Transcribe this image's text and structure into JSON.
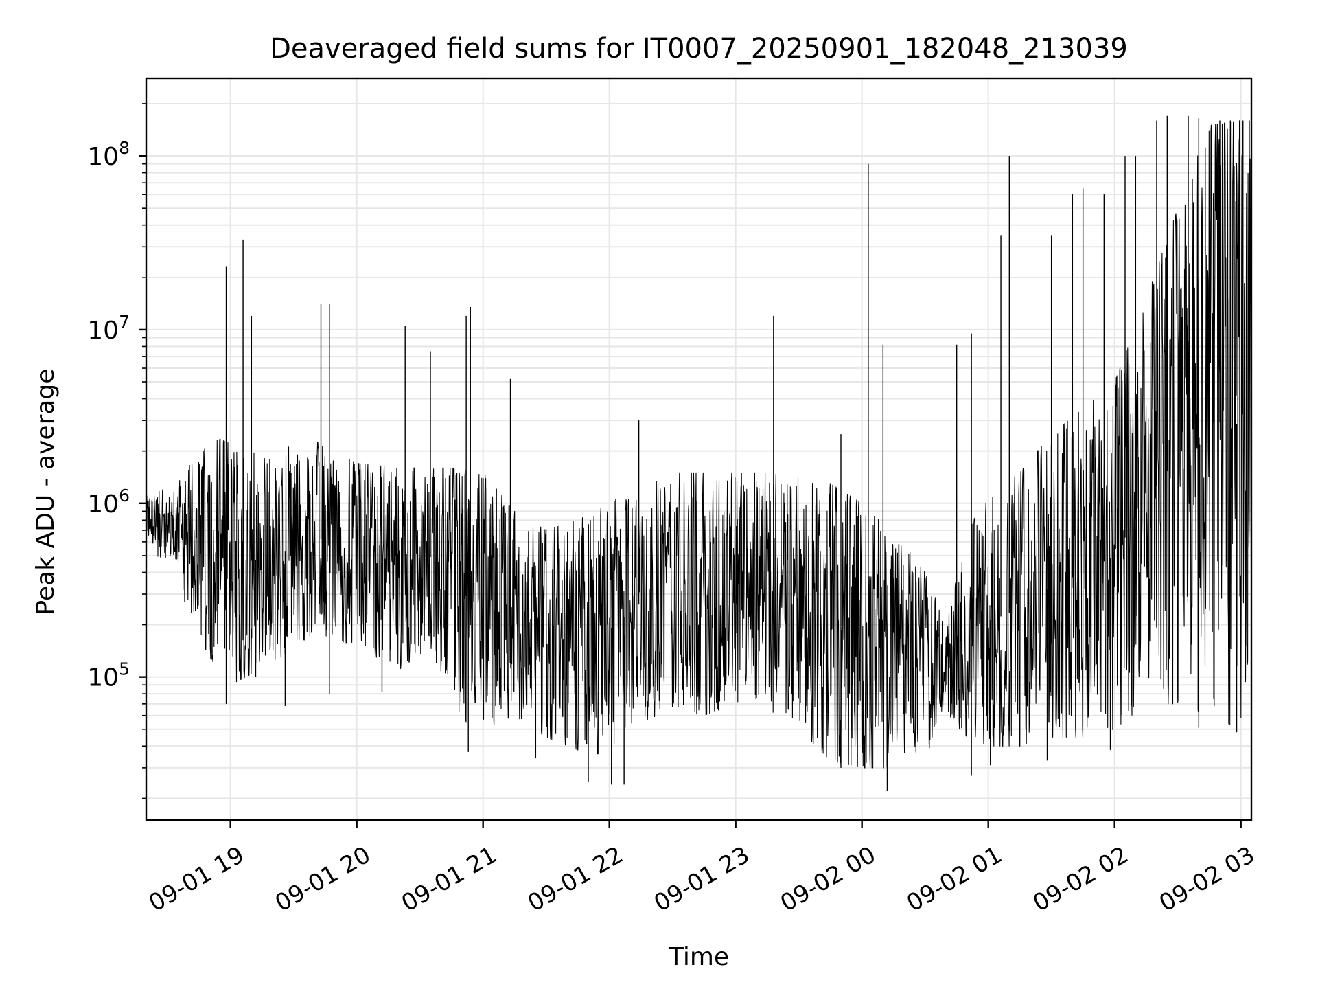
{
  "chart_data": {
    "type": "line",
    "title": "Deaveraged field sums for IT0007_20250901_182048_213039",
    "xlabel": "Time",
    "ylabel": "Peak ADU - average",
    "y_scale": "log",
    "grid": true,
    "grid_color": "#e6e6e6",
    "line_color": "#000000",
    "x_range": [
      "2025-09-01 18:20",
      "2025-09-02 03:05"
    ],
    "ylim": [
      15000,
      280000000
    ],
    "x_ticks": [
      {
        "time": "2025-09-01 19:00",
        "label": "09-01 19"
      },
      {
        "time": "2025-09-01 20:00",
        "label": "09-01 20"
      },
      {
        "time": "2025-09-01 21:00",
        "label": "09-01 21"
      },
      {
        "time": "2025-09-01 22:00",
        "label": "09-01 22"
      },
      {
        "time": "2025-09-01 23:00",
        "label": "09-01 23"
      },
      {
        "time": "2025-09-02 00:00",
        "label": "09-02 00"
      },
      {
        "time": "2025-09-02 01:00",
        "label": "09-02 01"
      },
      {
        "time": "2025-09-02 02:00",
        "label": "09-02 02"
      },
      {
        "time": "2025-09-02 03:00",
        "label": "09-02 03"
      }
    ],
    "y_ticks": [
      {
        "value": 100000,
        "mantissa": "10",
        "exponent": "5"
      },
      {
        "value": 1000000,
        "mantissa": "10",
        "exponent": "6"
      },
      {
        "value": 10000000,
        "mantissa": "10",
        "exponent": "7"
      },
      {
        "value": 100000000,
        "mantissa": "10",
        "exponent": "8"
      }
    ],
    "envelope": [
      {
        "time": "2025-09-01 18:20",
        "low": 650000,
        "high": 1100000
      },
      {
        "time": "2025-09-01 18:35",
        "low": 300000,
        "high": 1300000
      },
      {
        "time": "2025-09-01 18:50",
        "low": 130000,
        "high": 2500000
      },
      {
        "time": "2025-09-01 19:00",
        "low": 90000,
        "high": 2200000
      },
      {
        "time": "2025-09-01 19:20",
        "low": 120000,
        "high": 2000000
      },
      {
        "time": "2025-09-01 19:40",
        "low": 180000,
        "high": 2300000
      },
      {
        "time": "2025-09-01 20:00",
        "low": 150000,
        "high": 1700000
      },
      {
        "time": "2025-09-01 20:20",
        "low": 110000,
        "high": 1600000
      },
      {
        "time": "2025-09-01 20:35",
        "low": 150000,
        "high": 1600000
      },
      {
        "time": "2025-09-01 20:45",
        "low": 60000,
        "high": 1600000
      },
      {
        "time": "2025-09-01 21:00",
        "low": 50000,
        "high": 1500000
      },
      {
        "time": "2025-09-01 21:15",
        "low": 60000,
        "high": 900000
      },
      {
        "time": "2025-09-01 21:30",
        "low": 45000,
        "high": 700000
      },
      {
        "time": "2025-09-01 21:45",
        "low": 38000,
        "high": 800000
      },
      {
        "time": "2025-09-01 22:00",
        "low": 35000,
        "high": 1000000
      },
      {
        "time": "2025-09-01 22:15",
        "low": 55000,
        "high": 1300000
      },
      {
        "time": "2025-09-01 22:30",
        "low": 65000,
        "high": 1500000
      },
      {
        "time": "2025-09-01 22:45",
        "low": 60000,
        "high": 1500000
      },
      {
        "time": "2025-09-01 23:00",
        "low": 70000,
        "high": 1500000
      },
      {
        "time": "2025-09-01 23:15",
        "low": 65000,
        "high": 1500000
      },
      {
        "time": "2025-09-01 23:30",
        "low": 50000,
        "high": 1400000
      },
      {
        "time": "2025-09-01 23:45",
        "low": 33000,
        "high": 1300000
      },
      {
        "time": "2025-09-02 00:00",
        "low": 30000,
        "high": 1000000
      },
      {
        "time": "2025-09-02 00:15",
        "low": 30000,
        "high": 700000
      },
      {
        "time": "2025-09-02 00:30",
        "low": 35000,
        "high": 400000
      },
      {
        "time": "2025-09-02 00:40",
        "low": 60000,
        "high": 200000
      },
      {
        "time": "2025-09-02 00:50",
        "low": 45000,
        "high": 700000
      },
      {
        "time": "2025-09-02 01:00",
        "low": 40000,
        "high": 1100000
      },
      {
        "time": "2025-09-02 01:15",
        "low": 40000,
        "high": 1500000
      },
      {
        "time": "2025-09-02 01:30",
        "low": 45000,
        "high": 2500000
      },
      {
        "time": "2025-09-02 01:45",
        "low": 45000,
        "high": 3500000
      },
      {
        "time": "2025-09-02 02:00",
        "low": 50000,
        "high": 5000000
      },
      {
        "time": "2025-09-02 02:15",
        "low": 70000,
        "high": 15000000
      },
      {
        "time": "2025-09-02 02:30",
        "low": 70000,
        "high": 50000000
      },
      {
        "time": "2025-09-02 02:45",
        "low": 60000,
        "high": 150000000
      },
      {
        "time": "2025-09-02 03:00",
        "low": 50000,
        "high": 160000000
      },
      {
        "time": "2025-09-02 03:05",
        "low": 200000,
        "high": 160000000
      }
    ],
    "spikes": [
      {
        "time": "2025-09-01 18:58",
        "value": 23000000
      },
      {
        "time": "2025-09-01 19:06",
        "value": 33000000
      },
      {
        "time": "2025-09-01 19:10",
        "value": 12000000
      },
      {
        "time": "2025-09-01 19:43",
        "value": 14000000
      },
      {
        "time": "2025-09-01 19:47",
        "value": 14000000
      },
      {
        "time": "2025-09-01 20:23",
        "value": 10500000
      },
      {
        "time": "2025-09-01 20:35",
        "value": 7500000
      },
      {
        "time": "2025-09-01 20:52",
        "value": 12000000
      },
      {
        "time": "2025-09-01 20:54",
        "value": 13500000
      },
      {
        "time": "2025-09-01 21:13",
        "value": 5200000
      },
      {
        "time": "2025-09-01 22:14",
        "value": 3000000
      },
      {
        "time": "2025-09-01 23:18",
        "value": 12000000
      },
      {
        "time": "2025-09-01 23:50",
        "value": 2500000
      },
      {
        "time": "2025-09-02 00:03",
        "value": 90000000
      },
      {
        "time": "2025-09-02 00:10",
        "value": 8200000
      },
      {
        "time": "2025-09-02 00:45",
        "value": 8200000
      },
      {
        "time": "2025-09-02 00:52",
        "value": 9500000
      },
      {
        "time": "2025-09-02 01:06",
        "value": 35000000
      },
      {
        "time": "2025-09-02 01:10",
        "value": 100000000
      },
      {
        "time": "2025-09-02 01:30",
        "value": 35000000
      },
      {
        "time": "2025-09-02 01:40",
        "value": 60000000
      },
      {
        "time": "2025-09-02 01:45",
        "value": 65000000
      },
      {
        "time": "2025-09-02 01:55",
        "value": 60000000
      },
      {
        "time": "2025-09-02 02:05",
        "value": 100000000
      },
      {
        "time": "2025-09-02 02:10",
        "value": 100000000
      },
      {
        "time": "2025-09-02 02:20",
        "value": 160000000
      },
      {
        "time": "2025-09-02 02:25",
        "value": 170000000
      },
      {
        "time": "2025-09-02 02:35",
        "value": 170000000
      },
      {
        "time": "2025-09-02 02:40",
        "value": 165000000
      },
      {
        "time": "2025-09-02 02:50",
        "value": 160000000
      },
      {
        "time": "2025-09-02 02:55",
        "value": 160000000
      },
      {
        "time": "2025-09-02 03:01",
        "value": 160000000
      },
      {
        "time": "2025-09-02 03:04",
        "value": 160000000
      }
    ],
    "dips": [
      {
        "time": "2025-09-01 18:58",
        "value": 70000
      },
      {
        "time": "2025-09-01 19:12",
        "value": 100000
      },
      {
        "time": "2025-09-01 19:26",
        "value": 68000
      },
      {
        "time": "2025-09-01 19:47",
        "value": 80000
      },
      {
        "time": "2025-09-01 20:12",
        "value": 82000
      },
      {
        "time": "2025-09-01 20:53",
        "value": 37000
      },
      {
        "time": "2025-09-01 21:25",
        "value": 34000
      },
      {
        "time": "2025-09-01 21:50",
        "value": 25000
      },
      {
        "time": "2025-09-01 22:01",
        "value": 24000
      },
      {
        "time": "2025-09-01 22:07",
        "value": 24000
      },
      {
        "time": "2025-09-01 23:50",
        "value": 30000
      },
      {
        "time": "2025-09-02 00:02",
        "value": 32000
      },
      {
        "time": "2025-09-02 00:12",
        "value": 22000
      },
      {
        "time": "2025-09-02 00:52",
        "value": 27000
      },
      {
        "time": "2025-09-02 01:01",
        "value": 31000
      },
      {
        "time": "2025-09-02 01:28",
        "value": 33000
      },
      {
        "time": "2025-09-02 01:58",
        "value": 38000
      },
      {
        "time": "2025-09-02 02:40",
        "value": 51000
      },
      {
        "time": "2025-09-02 02:58",
        "value": 48000
      }
    ]
  }
}
